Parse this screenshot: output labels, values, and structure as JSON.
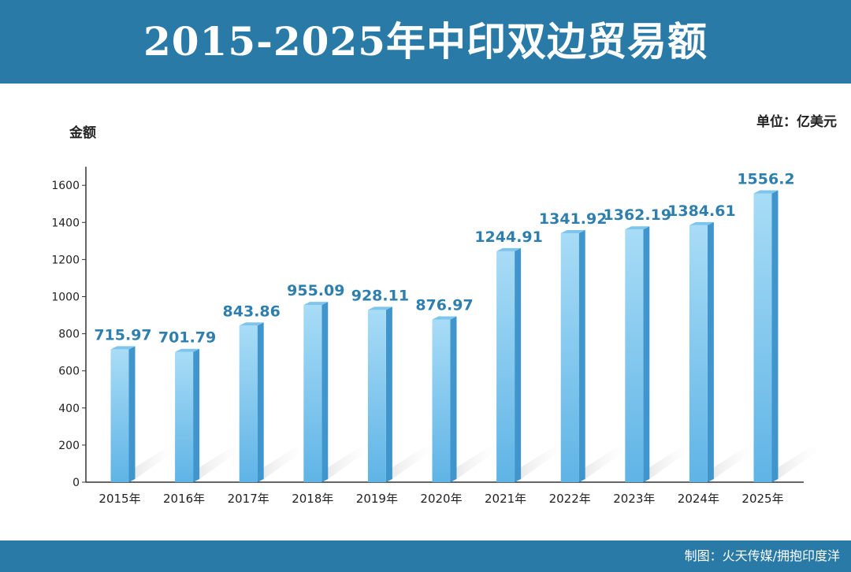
{
  "header": {
    "title": "2015-2025年中印双边贸易额"
  },
  "footer": {
    "credit": "制图：火天传媒/拥抱印度洋"
  },
  "colors": {
    "band": "#2a7aa8",
    "bar_front_top": "#a8dcf6",
    "bar_front_bottom": "#5fb4e6",
    "bar_side": "#3f95cc",
    "bar_top": "#7ec5ee",
    "value_label": "#2f7fae",
    "shadow": "#d6d6d6"
  },
  "chart_data": {
    "type": "bar",
    "title": "2015-2025年中印双边贸易额",
    "ylabel": "金额",
    "unit_label": "单位：亿美元",
    "categories": [
      "2015年",
      "2016年",
      "2017年",
      "2018年",
      "2019年",
      "2020年",
      "2021年",
      "2022年",
      "2023年",
      "2024年",
      "2025年"
    ],
    "values": [
      715.97,
      701.79,
      843.86,
      955.09,
      928.11,
      876.97,
      1244.91,
      1341.92,
      1362.19,
      1384.61,
      1556.2
    ],
    "value_labels": [
      "715.97",
      "701.79",
      "843.86",
      "955.09",
      "928.11",
      "876.97",
      "1244.91",
      "1341.92",
      "1362.19",
      "1384.61",
      "1556.2"
    ],
    "yticks": [
      0,
      200,
      400,
      600,
      800,
      1000,
      1200,
      1400,
      1600
    ],
    "ylim": [
      0,
      1700
    ],
    "grid": false,
    "legend": "none"
  }
}
